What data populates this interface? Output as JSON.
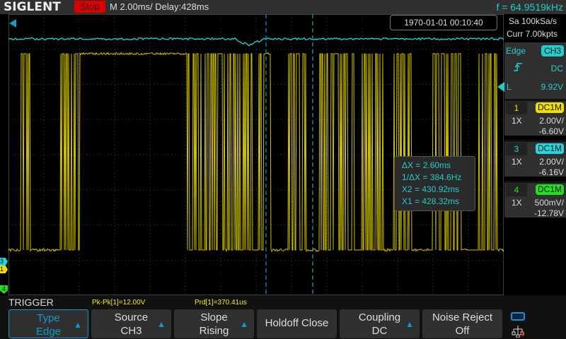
{
  "header": {
    "logo": "SIGLENT",
    "status": "Stop",
    "timebase": "M 2.00ms/ Delay:428ms",
    "frequency": "f = 64.9519kHz"
  },
  "datetime": "1970-01-01 00:10:40",
  "acquisition": {
    "sample_rate": "Sa 100kSa/s",
    "memory": "Curr 7.00kpts"
  },
  "trigger_panel": {
    "type": "Edge",
    "source": "CH3",
    "coupling": "DC",
    "level_label": "L",
    "level": "9.92V"
  },
  "channels": [
    {
      "num": "1",
      "coupling": "DC1M",
      "probe": "1X",
      "scale": "2.00V/",
      "offset": "-6.60V",
      "color": "#f0e000"
    },
    {
      "num": "3",
      "coupling": "DC1M",
      "probe": "1X",
      "scale": "2.00V/",
      "offset": "-6.16V",
      "color": "#20d8e0"
    },
    {
      "num": "4",
      "coupling": "DC1M",
      "probe": "1X",
      "scale": "500mV/",
      "offset": "-12.78V",
      "color": "#20e020"
    }
  ],
  "cursors": {
    "dx": "ΔX = 2.60ms",
    "inv_dx": "1/ΔX = 384.6Hz",
    "x2": "X2 = 430.92ms",
    "x1": "X1 = 428.32ms"
  },
  "markers": {
    "ch3": "3",
    "ch1": "1",
    "ch4": "4"
  },
  "bottom": {
    "title": "TRIGGER",
    "meas1": "Pk-Pk[1]=12.00V",
    "meas2": "Prd[1]=370.41us",
    "softkeys": [
      {
        "line1": "Type",
        "line2": "Edge",
        "arrow": true,
        "active": true
      },
      {
        "line1": "Source",
        "line2": "CH3",
        "arrow": true
      },
      {
        "line1": "Slope",
        "line2": "Rising",
        "arrow": true
      },
      {
        "line1": "Holdoff Close",
        "line2": "",
        "arrow": false
      },
      {
        "line1": "Coupling",
        "line2": "DC",
        "arrow": true
      },
      {
        "line1": "Noise Reject",
        "line2": "Off",
        "arrow": false
      }
    ]
  },
  "colors": {
    "ch1": "#f0e000",
    "ch3": "#20d8e0",
    "ch4": "#20e020",
    "stop": "#dd0000",
    "accent": "#1899cc"
  }
}
